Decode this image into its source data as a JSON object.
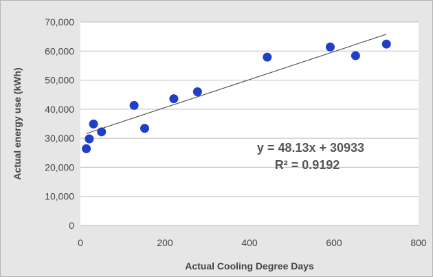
{
  "chart_data": {
    "type": "scatter",
    "title": "",
    "xlabel": "Actual Cooling Degree Days",
    "ylabel": "Actual energy use (kWh)",
    "xlim": [
      0,
      800
    ],
    "ylim": [
      0,
      70000
    ],
    "x_ticks": [
      0,
      200,
      400,
      600,
      800
    ],
    "x_tick_labels": [
      "0",
      "200",
      "400",
      "600",
      "800"
    ],
    "y_ticks": [
      0,
      10000,
      20000,
      30000,
      40000,
      50000,
      60000,
      70000
    ],
    "y_tick_labels": [
      "0",
      "10,000",
      "20,000",
      "30,000",
      "40,000",
      "50,000",
      "60,000",
      "70,000"
    ],
    "grid": "horizontal",
    "series": [
      {
        "points": [
          {
            "x": 14,
            "y": 26400
          },
          {
            "x": 21,
            "y": 29800
          },
          {
            "x": 31,
            "y": 34900
          },
          {
            "x": 50,
            "y": 32200
          },
          {
            "x": 127,
            "y": 41300
          },
          {
            "x": 152,
            "y": 33400
          },
          {
            "x": 221,
            "y": 43600
          },
          {
            "x": 277,
            "y": 46000
          },
          {
            "x": 442,
            "y": 57900
          },
          {
            "x": 591,
            "y": 61400
          },
          {
            "x": 651,
            "y": 58400
          },
          {
            "x": 724,
            "y": 62400
          }
        ]
      }
    ],
    "trendline": {
      "slope": 48.13,
      "intercept": 30933,
      "x_range": [
        14,
        724
      ]
    },
    "annotation": {
      "equation": "y = 48.13x + 30933",
      "r_squared": "R² = 0.9192"
    },
    "colors": {
      "marker": "#1f3fc6",
      "trendline": "#555555",
      "gridline": "#bdbdbd",
      "plot_background": "#ffffff",
      "frame_background": "#e6e6e6"
    }
  }
}
